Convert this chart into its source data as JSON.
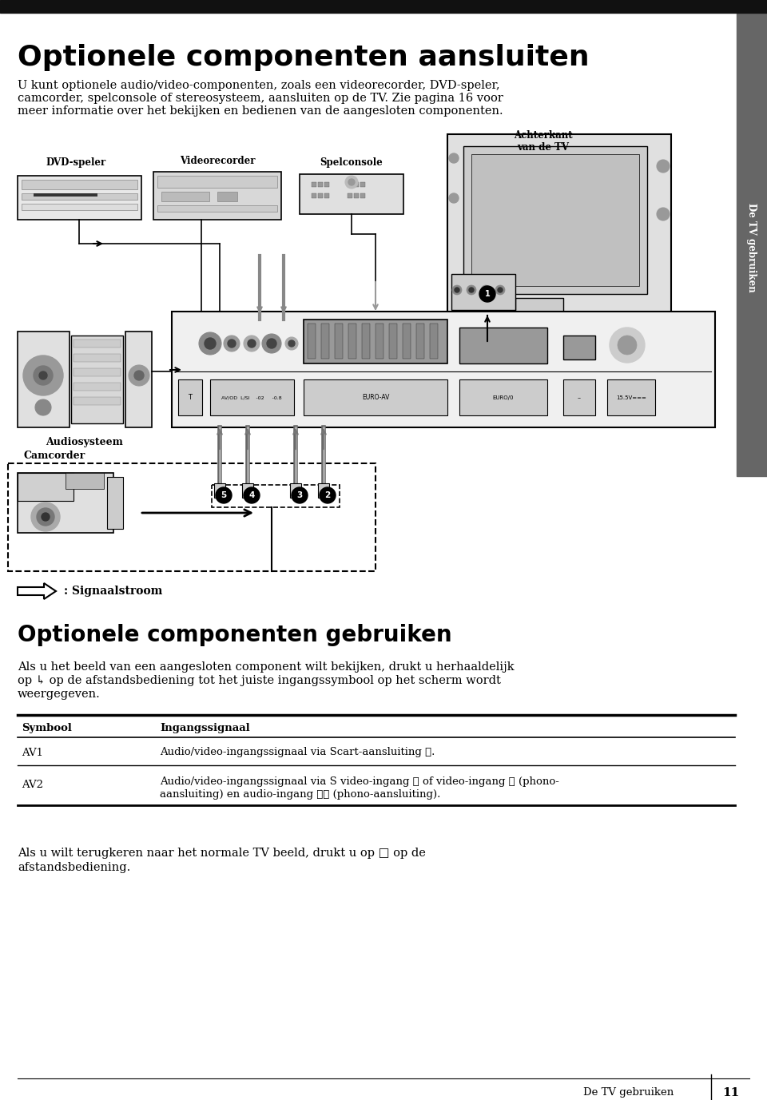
{
  "title": "Optionele componenten aansluiten",
  "subtitle_line1": "U kunt optionele audio/video-componenten, zoals een videorecorder, DVD-speler,",
  "subtitle_line2": "camcorder, spelconsole of stereosysteem, aansluiten op de TV. Zie pagina 16 voor",
  "subtitle_line3": "meer informatie over het bekijken en bedienen van de aangesloten componenten.",
  "sidebar_text": "De TV gebruiken",
  "achterkant_label": "Achterkant\nvan de TV",
  "dvd_label": "DVD-speler",
  "video_label": "Videorecorder",
  "spel_label": "Spelconsole",
  "audio_label": "Audiosysteem",
  "camcorder_label": "Camcorder",
  "signaal_label": ": Signaalstroom",
  "section2_title": "Optionele componenten gebruiken",
  "section2_text1": "Als u het beeld van een aangesloten component wilt bekijken, drukt u herhaaldelijk",
  "section2_text2": "op ↳ op de afstandsbediening tot het juiste ingangssymbool op het scherm wordt",
  "section2_text3": "weergegeven.",
  "table_header1": "Symbool",
  "table_header2": "Ingangssignaal",
  "table_row1_col1": "AV1",
  "table_row1_col2": "Audio/video-ingangssignaal via Scart-aansluiting ❶.",
  "table_row2_col1": "AV2",
  "table_row2_col2a": "Audio/video-ingangssignaal via S video-ingang ❷ of video-ingang ❸ (phono-",
  "table_row2_col2b": "aansluiting) en audio-ingang ❹❺ (phono-aansluiting).",
  "footer_text1": "Als u wilt terugkeren naar het normale TV beeld, drukt u op □ op de",
  "footer_text2": "afstandsbediening.",
  "page_label": "De TV gebruiken",
  "page_number": "11",
  "bg_color": "#ffffff",
  "text_color": "#000000",
  "title_bar_color": "#111111",
  "sidebar_color": "#666666",
  "diagram_bg": "#f5f5f5",
  "gray_light": "#cccccc",
  "gray_mid": "#999999",
  "gray_dark": "#555555"
}
